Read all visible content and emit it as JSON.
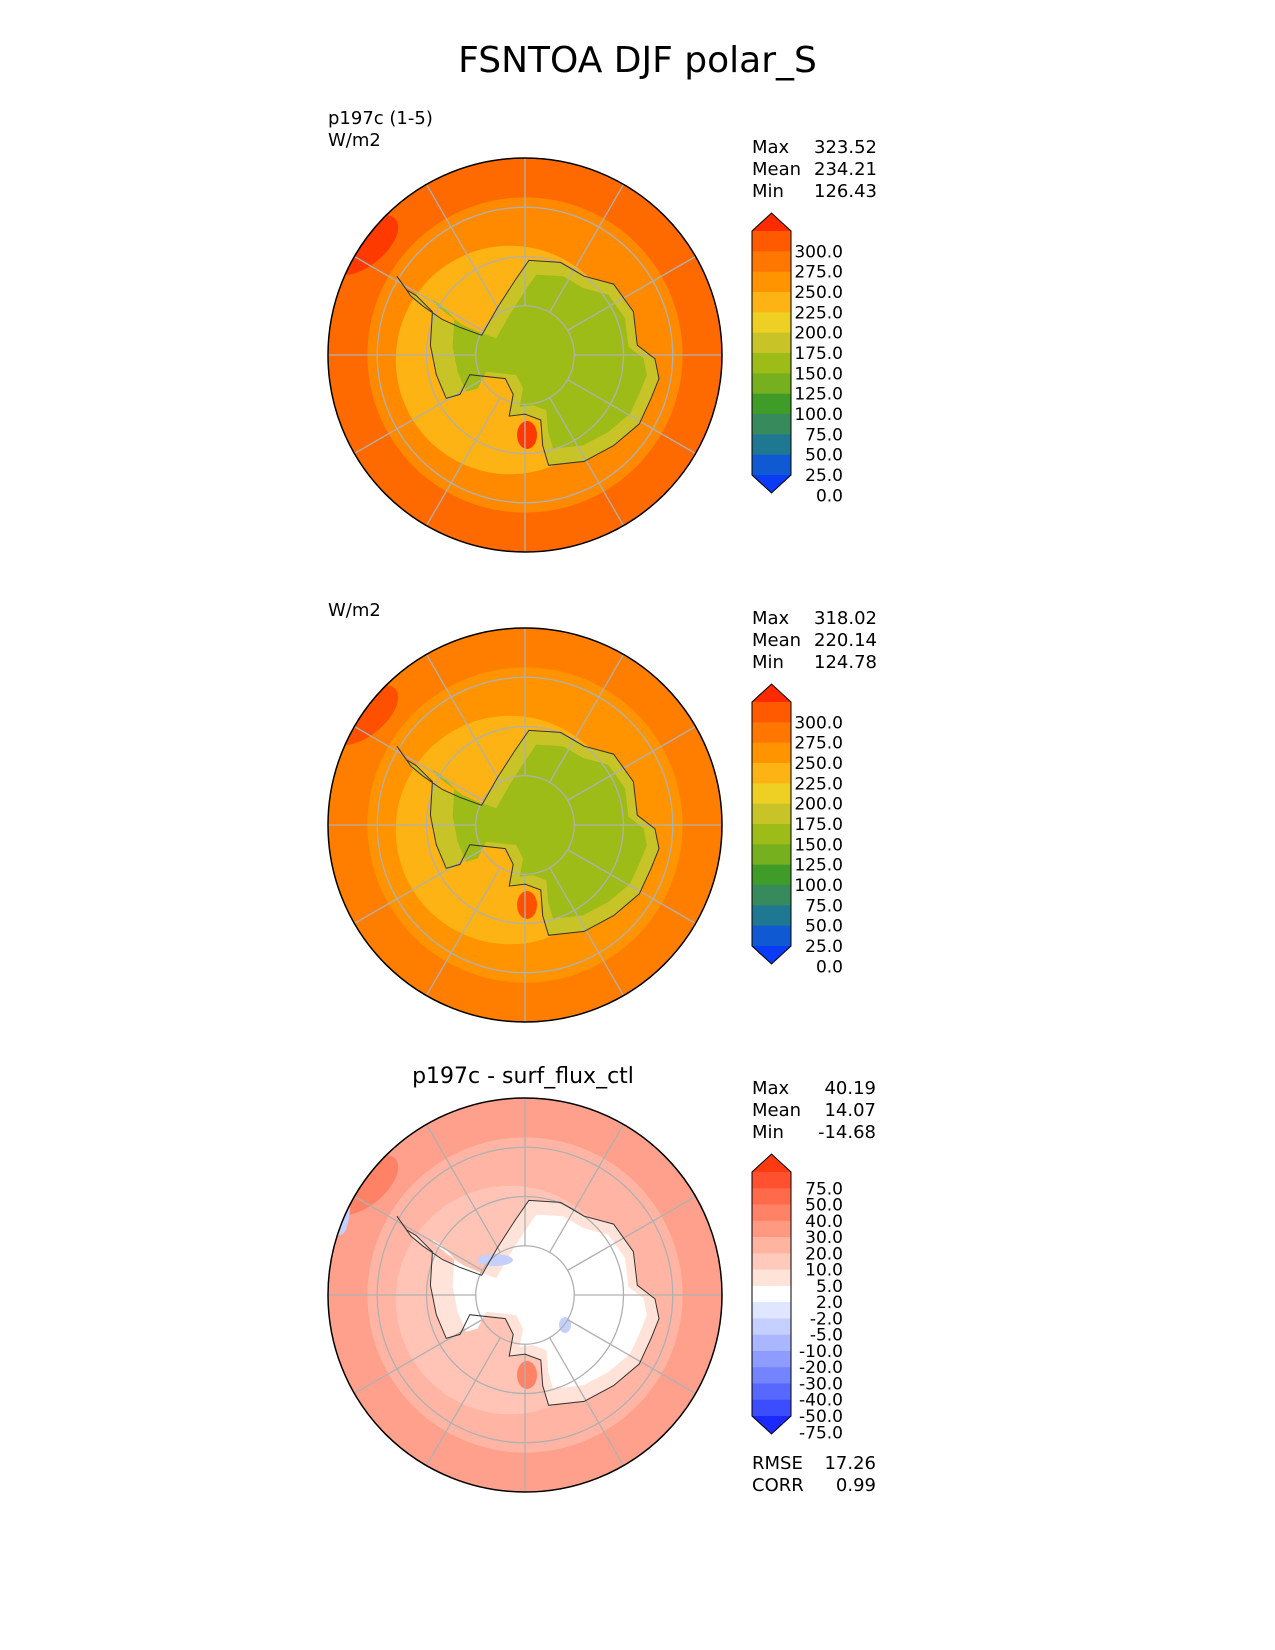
{
  "title": "FSNTOA DJF polar_S",
  "chart_data": [
    {
      "type": "heatmap",
      "projection": "south polar stereographic",
      "label_lines": [
        "p197c (1-5)",
        "W/m2"
      ],
      "stats": [
        {
          "key": "Max",
          "value": "323.52"
        },
        {
          "key": "Mean",
          "value": "234.21"
        },
        {
          "key": "Min",
          "value": "126.43"
        }
      ],
      "colorbar": {
        "ticks": [
          "300.0",
          "275.0",
          "250.0",
          "225.0",
          "200.0",
          "175.0",
          "150.0",
          "125.0",
          "100.0",
          "75.0",
          "50.0",
          "25.0",
          "0.0"
        ],
        "colors": [
          "#ff2a00",
          "#ff5a00",
          "#ff7700",
          "#ff9400",
          "#fdb313",
          "#eecf24",
          "#c8c427",
          "#9ebc18",
          "#76b01e",
          "#3f9c28",
          "#378a5c",
          "#1e7892",
          "#0f5ad2",
          "#0a3cf5"
        ],
        "extend": "both"
      },
      "field": {
        "ocean_far": "#ff6a00",
        "ocean_mid": "#ff8a00",
        "coast_ring": "#fdb313",
        "ice_edge": "#c8c427",
        "interior": "#9ebc18",
        "hotspot": "#ff3a00"
      }
    },
    {
      "type": "heatmap",
      "projection": "south polar stereographic",
      "label_lines": [
        "W/m2"
      ],
      "stats": [
        {
          "key": "Max",
          "value": "318.02"
        },
        {
          "key": "Mean",
          "value": "220.14"
        },
        {
          "key": "Min",
          "value": "124.78"
        }
      ],
      "colorbar": {
        "ticks": [
          "300.0",
          "275.0",
          "250.0",
          "225.0",
          "200.0",
          "175.0",
          "150.0",
          "125.0",
          "100.0",
          "75.0",
          "50.0",
          "25.0",
          "0.0"
        ],
        "colors": [
          "#ff2a00",
          "#ff5a00",
          "#ff7700",
          "#ff9400",
          "#fdb313",
          "#eecf24",
          "#c8c427",
          "#9ebc18",
          "#76b01e",
          "#3f9c28",
          "#378a5c",
          "#1e7892",
          "#0f5ad2",
          "#0a3cf5"
        ],
        "extend": "both"
      },
      "field": {
        "ocean_far": "#ff7e00",
        "ocean_mid": "#ff9400",
        "coast_ring": "#fdb313",
        "ice_edge": "#c8c427",
        "interior": "#9ebc18",
        "hotspot": "#ff5000"
      }
    },
    {
      "type": "heatmap",
      "projection": "south polar stereographic",
      "title": "p197c - surf_flux_ctl",
      "stats": [
        {
          "key": "Max",
          "value": "40.19"
        },
        {
          "key": "Mean",
          "value": "14.07"
        },
        {
          "key": "Min",
          "value": "-14.68"
        }
      ],
      "metrics": [
        {
          "key": "RMSE",
          "value": "17.26"
        },
        {
          "key": "CORR",
          "value": "0.99"
        }
      ],
      "colorbar": {
        "ticks": [
          "75.0",
          "50.0",
          "40.0",
          "30.0",
          "20.0",
          "10.0",
          "5.0",
          "2.0",
          "-2.0",
          "-5.0",
          "-10.0",
          "-20.0",
          "-30.0",
          "-40.0",
          "-50.0",
          "-75.0"
        ],
        "colors": [
          "#ff3a10",
          "#ff5030",
          "#ff6a4a",
          "#ff8266",
          "#ff9a80",
          "#ffb4a0",
          "#ffcabc",
          "#ffe2d8",
          "#ffffff",
          "#e0e6ff",
          "#c6d0ff",
          "#aab6ff",
          "#8e9cff",
          "#7484ff",
          "#5868ff",
          "#3c4cff",
          "#1a2aff"
        ],
        "extend": "both"
      },
      "field": {
        "ocean_far": "#ffa08c",
        "ocean_mid": "#ffb4a4",
        "coast_ring": "#ffc4b6",
        "ice_edge": "#ffe2d8",
        "interior": "#ffffff",
        "hotspot": "#ff8266",
        "negative": "#c6d0ff"
      }
    }
  ]
}
